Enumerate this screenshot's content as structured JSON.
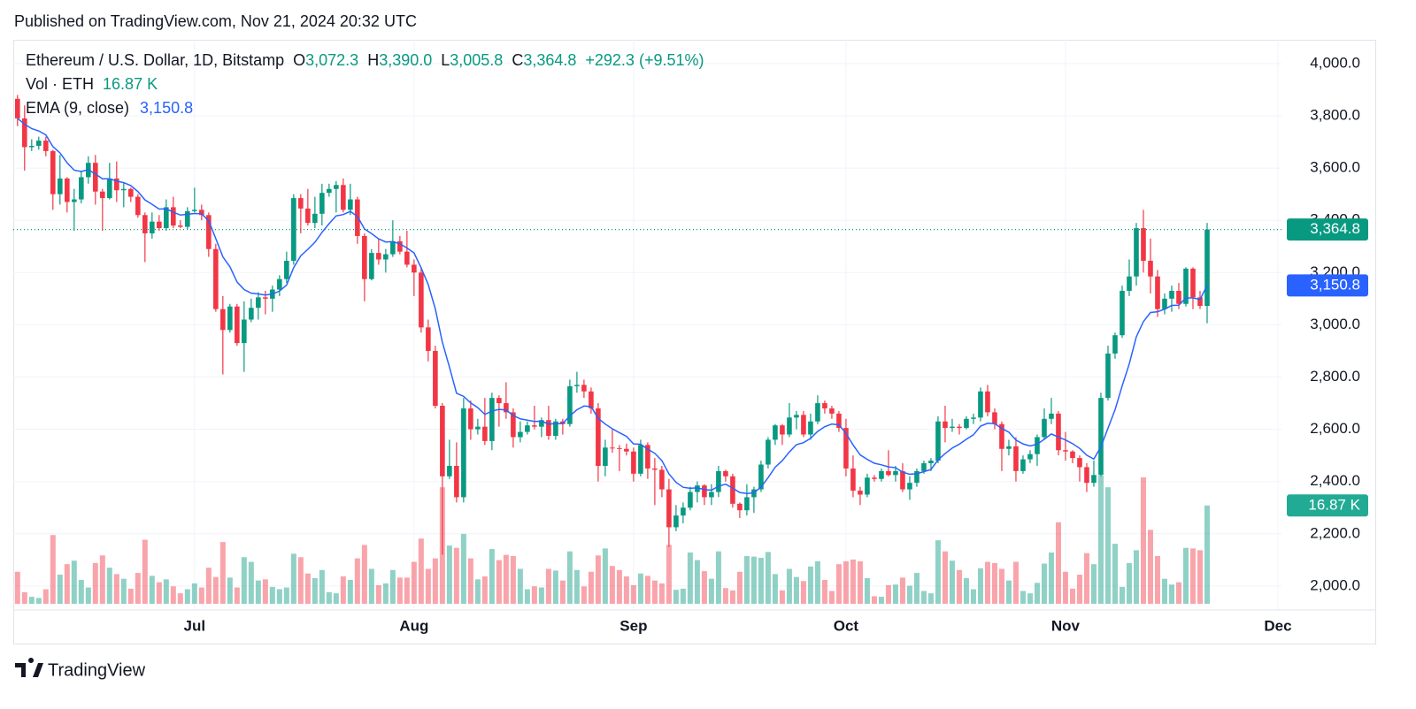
{
  "header": {
    "published": "Published on TradingView.com, Nov 21, 2024 20:32 UTC",
    "logo_text": "TradingView"
  },
  "chart_data": {
    "type": "candlestick",
    "title": "Ethereum / U.S. Dollar, 1D, Bitstamp",
    "ohlc_values": [
      {
        "key": "O",
        "text": "3,072.3"
      },
      {
        "key": "H",
        "text": "3,390.0"
      },
      {
        "key": "L",
        "text": "3,005.8"
      },
      {
        "key": "C",
        "text": "3,364.8"
      }
    ],
    "change": "+292.3 (+9.51%)",
    "volume_label": "Vol · ETH",
    "volume_value": "16.87 K",
    "ema_label": "EMA (9, close)",
    "ema_value": "3,150.8",
    "up_color": "#089981",
    "down_color": "#f23645",
    "ema_color": "#2962ff",
    "grid": true,
    "ylim": [
      1932,
      4091
    ],
    "yticks": [
      {
        "value": 2000,
        "label": "2,000.0"
      },
      {
        "value": 2200,
        "label": "2,200.0"
      },
      {
        "value": 2400,
        "label": "2,400.0"
      },
      {
        "value": 2600,
        "label": "2,600.0"
      },
      {
        "value": 2800,
        "label": "2,800.0"
      },
      {
        "value": 3000,
        "label": "3,000.0"
      },
      {
        "value": 3200,
        "label": "3,200.0"
      },
      {
        "value": 3400,
        "label": "3,400.0"
      },
      {
        "value": 3600,
        "label": "3,600.0"
      },
      {
        "value": 3800,
        "label": "3,800.0"
      },
      {
        "value": 4000,
        "label": "4,000.0"
      }
    ],
    "xlim": [
      -0.6,
      178.5
    ],
    "xticks": [
      {
        "value": 25,
        "label": "Jul"
      },
      {
        "value": 56,
        "label": "Aug"
      },
      {
        "value": 87,
        "label": "Sep"
      },
      {
        "value": 117,
        "label": "Oct"
      },
      {
        "value": 148,
        "label": "Nov"
      },
      {
        "value": 178,
        "label": "Dec"
      }
    ],
    "last_price": {
      "value": 3364.8,
      "label": "3,364.8"
    },
    "ohlc": [
      [
        3865,
        3880,
        3760,
        3790
      ],
      [
        3790,
        3840,
        3590,
        3680
      ],
      [
        3680,
        3710,
        3665,
        3685
      ],
      [
        3685,
        3720,
        3670,
        3705
      ],
      [
        3705,
        3720,
        3645,
        3665
      ],
      [
        3665,
        3670,
        3440,
        3500
      ],
      [
        3500,
        3650,
        3460,
        3560
      ],
      [
        3560,
        3565,
        3430,
        3470
      ],
      [
        3470,
        3520,
        3360,
        3480
      ],
      [
        3480,
        3590,
        3465,
        3565
      ],
      [
        3565,
        3645,
        3540,
        3620
      ],
      [
        3620,
        3650,
        3460,
        3510
      ],
      [
        3510,
        3520,
        3360,
        3485
      ],
      [
        3485,
        3620,
        3480,
        3560
      ],
      [
        3560,
        3625,
        3470,
        3515
      ],
      [
        3515,
        3545,
        3450,
        3520
      ],
      [
        3520,
        3525,
        3470,
        3490
      ],
      [
        3490,
        3500,
        3410,
        3420
      ],
      [
        3420,
        3430,
        3240,
        3350
      ],
      [
        3350,
        3430,
        3330,
        3395
      ],
      [
        3395,
        3420,
        3360,
        3370
      ],
      [
        3370,
        3480,
        3360,
        3450
      ],
      [
        3450,
        3490,
        3370,
        3380
      ],
      [
        3380,
        3400,
        3370,
        3375
      ],
      [
        3375,
        3450,
        3365,
        3435
      ],
      [
        3435,
        3525,
        3430,
        3440
      ],
      [
        3440,
        3460,
        3400,
        3420
      ],
      [
        3420,
        3430,
        3260,
        3290
      ],
      [
        3290,
        3310,
        3050,
        3060
      ],
      [
        3060,
        3110,
        2810,
        2980
      ],
      [
        2980,
        3080,
        2970,
        3070
      ],
      [
        3070,
        3080,
        2920,
        2930
      ],
      [
        2930,
        3090,
        2820,
        3020
      ],
      [
        3020,
        3100,
        3010,
        3065
      ],
      [
        3065,
        3125,
        3020,
        3105
      ],
      [
        3105,
        3130,
        3040,
        3100
      ],
      [
        3100,
        3150,
        3050,
        3135
      ],
      [
        3135,
        3190,
        3110,
        3175
      ],
      [
        3175,
        3280,
        3160,
        3245
      ],
      [
        3245,
        3500,
        3230,
        3485
      ],
      [
        3485,
        3500,
        3350,
        3445
      ],
      [
        3445,
        3520,
        3380,
        3390
      ],
      [
        3390,
        3490,
        3370,
        3425
      ],
      [
        3425,
        3540,
        3380,
        3505
      ],
      [
        3505,
        3540,
        3490,
        3520
      ],
      [
        3520,
        3550,
        3430,
        3535
      ],
      [
        3535,
        3560,
        3430,
        3440
      ],
      [
        3440,
        3540,
        3420,
        3480
      ],
      [
        3480,
        3490,
        3310,
        3340
      ],
      [
        3340,
        3350,
        3090,
        3175
      ],
      [
        3175,
        3290,
        3170,
        3275
      ],
      [
        3275,
        3330,
        3230,
        3250
      ],
      [
        3250,
        3290,
        3200,
        3270
      ],
      [
        3270,
        3400,
        3260,
        3320
      ],
      [
        3320,
        3340,
        3270,
        3280
      ],
      [
        3280,
        3360,
        3220,
        3230
      ],
      [
        3230,
        3250,
        3110,
        3200
      ],
      [
        3200,
        3220,
        2970,
        2990
      ],
      [
        2990,
        3020,
        2860,
        2900
      ],
      [
        2900,
        2920,
        2680,
        2690
      ],
      [
        2690,
        2700,
        2120,
        2420
      ],
      [
        2420,
        2560,
        2410,
        2460
      ],
      [
        2460,
        2550,
        2320,
        2340
      ],
      [
        2340,
        2720,
        2320,
        2680
      ],
      [
        2680,
        2710,
        2560,
        2600
      ],
      [
        2600,
        2640,
        2580,
        2610
      ],
      [
        2610,
        2720,
        2540,
        2555
      ],
      [
        2555,
        2740,
        2520,
        2720
      ],
      [
        2720,
        2730,
        2610,
        2700
      ],
      [
        2700,
        2780,
        2640,
        2665
      ],
      [
        2665,
        2680,
        2530,
        2570
      ],
      [
        2570,
        2630,
        2550,
        2590
      ],
      [
        2590,
        2630,
        2580,
        2615
      ],
      [
        2615,
        2690,
        2600,
        2610
      ],
      [
        2610,
        2645,
        2570,
        2635
      ],
      [
        2635,
        2690,
        2560,
        2575
      ],
      [
        2575,
        2640,
        2560,
        2630
      ],
      [
        2630,
        2640,
        2580,
        2620
      ],
      [
        2620,
        2790,
        2610,
        2765
      ],
      [
        2765,
        2820,
        2740,
        2770
      ],
      [
        2770,
        2790,
        2720,
        2745
      ],
      [
        2745,
        2760,
        2660,
        2680
      ],
      [
        2680,
        2700,
        2400,
        2460
      ],
      [
        2460,
        2560,
        2420,
        2530
      ],
      [
        2530,
        2600,
        2510,
        2528
      ],
      [
        2528,
        2540,
        2440,
        2525
      ],
      [
        2525,
        2545,
        2500,
        2515
      ],
      [
        2515,
        2530,
        2400,
        2430
      ],
      [
        2430,
        2560,
        2420,
        2540
      ],
      [
        2540,
        2550,
        2410,
        2450
      ],
      [
        2450,
        2490,
        2310,
        2445
      ],
      [
        2445,
        2460,
        2340,
        2370
      ],
      [
        2370,
        2410,
        2150,
        2225
      ],
      [
        2225,
        2310,
        2210,
        2270
      ],
      [
        2270,
        2320,
        2240,
        2300
      ],
      [
        2300,
        2380,
        2290,
        2360
      ],
      [
        2360,
        2400,
        2320,
        2385
      ],
      [
        2385,
        2390,
        2310,
        2340
      ],
      [
        2340,
        2390,
        2310,
        2360
      ],
      [
        2360,
        2460,
        2340,
        2440
      ],
      [
        2440,
        2445,
        2400,
        2420
      ],
      [
        2420,
        2430,
        2300,
        2315
      ],
      [
        2315,
        2320,
        2260,
        2290
      ],
      [
        2290,
        2390,
        2270,
        2340
      ],
      [
        2340,
        2380,
        2280,
        2370
      ],
      [
        2370,
        2480,
        2360,
        2465
      ],
      [
        2465,
        2570,
        2450,
        2560
      ],
      [
        2560,
        2620,
        2540,
        2615
      ],
      [
        2615,
        2620,
        2540,
        2580
      ],
      [
        2580,
        2700,
        2570,
        2645
      ],
      [
        2645,
        2670,
        2600,
        2655
      ],
      [
        2655,
        2670,
        2570,
        2580
      ],
      [
        2580,
        2660,
        2560,
        2630
      ],
      [
        2630,
        2730,
        2620,
        2700
      ],
      [
        2700,
        2710,
        2660,
        2680
      ],
      [
        2680,
        2690,
        2640,
        2660
      ],
      [
        2660,
        2670,
        2590,
        2605
      ],
      [
        2605,
        2640,
        2420,
        2450
      ],
      [
        2450,
        2500,
        2340,
        2365
      ],
      [
        2365,
        2380,
        2310,
        2350
      ],
      [
        2350,
        2430,
        2340,
        2415
      ],
      [
        2415,
        2425,
        2400,
        2410
      ],
      [
        2410,
        2450,
        2400,
        2440
      ],
      [
        2440,
        2520,
        2420,
        2425
      ],
      [
        2425,
        2460,
        2400,
        2440
      ],
      [
        2440,
        2470,
        2360,
        2370
      ],
      [
        2370,
        2420,
        2330,
        2395
      ],
      [
        2395,
        2450,
        2380,
        2440
      ],
      [
        2440,
        2480,
        2430,
        2470
      ],
      [
        2470,
        2490,
        2440,
        2480
      ],
      [
        2480,
        2650,
        2470,
        2630
      ],
      [
        2630,
        2690,
        2550,
        2605
      ],
      [
        2605,
        2640,
        2590,
        2610
      ],
      [
        2610,
        2620,
        2580,
        2605
      ],
      [
        2605,
        2650,
        2600,
        2640
      ],
      [
        2640,
        2660,
        2620,
        2645
      ],
      [
        2645,
        2760,
        2630,
        2745
      ],
      [
        2745,
        2770,
        2650,
        2665
      ],
      [
        2665,
        2680,
        2600,
        2620
      ],
      [
        2620,
        2630,
        2440,
        2525
      ],
      [
        2525,
        2560,
        2500,
        2535
      ],
      [
        2535,
        2570,
        2400,
        2440
      ],
      [
        2440,
        2500,
        2430,
        2485
      ],
      [
        2485,
        2520,
        2470,
        2505
      ],
      [
        2505,
        2580,
        2460,
        2570
      ],
      [
        2570,
        2680,
        2560,
        2640
      ],
      [
        2640,
        2720,
        2620,
        2660
      ],
      [
        2660,
        2670,
        2500,
        2520
      ],
      [
        2520,
        2590,
        2480,
        2515
      ],
      [
        2515,
        2520,
        2470,
        2490
      ],
      [
        2490,
        2500,
        2400,
        2455
      ],
      [
        2455,
        2470,
        2360,
        2395
      ],
      [
        2395,
        2480,
        2380,
        2425
      ],
      [
        2425,
        2740,
        2420,
        2720
      ],
      [
        2720,
        2920,
        2710,
        2890
      ],
      [
        2890,
        2970,
        2870,
        2960
      ],
      [
        2960,
        3150,
        2950,
        3130
      ],
      [
        3130,
        3250,
        3110,
        3185
      ],
      [
        3185,
        3390,
        3150,
        3370
      ],
      [
        3370,
        3440,
        3200,
        3245
      ],
      [
        3245,
        3330,
        3120,
        3185
      ],
      [
        3185,
        3210,
        3030,
        3060
      ],
      [
        3060,
        3120,
        3040,
        3100
      ],
      [
        3100,
        3150,
        3050,
        3130
      ],
      [
        3130,
        3160,
        3060,
        3080
      ],
      [
        3080,
        3220,
        3070,
        3215
      ],
      [
        3215,
        3220,
        3060,
        3105
      ],
      [
        3105,
        3130,
        3060,
        3072.3
      ],
      [
        3072.3,
        3390,
        3005.8,
        3364.8
      ]
    ],
    "volume": [
      5.5,
      2.0,
      1.2,
      1.0,
      2.5,
      11.8,
      5.0,
      6.8,
      7.4,
      4.1,
      2.8,
      7.0,
      8.3,
      6.2,
      5.1,
      4.3,
      2.6,
      5.3,
      11.0,
      4.8,
      3.7,
      4.2,
      3.0,
      1.8,
      2.5,
      3.5,
      2.8,
      6.2,
      4.6,
      10.6,
      4.5,
      2.8,
      8.0,
      7.2,
      4.0,
      4.2,
      2.9,
      2.5,
      2.8,
      8.6,
      8.0,
      5.2,
      4.4,
      5.8,
      2.0,
      1.8,
      4.7,
      4.1,
      7.8,
      10.1,
      6.0,
      3.2,
      3.5,
      5.8,
      4.5,
      4.5,
      7.2,
      11.2,
      6.0,
      7.8,
      20.0,
      10.0,
      9.6,
      12.0,
      7.8,
      4.2,
      4.7,
      9.4,
      7.5,
      8.4,
      8.2,
      6.0,
      2.5,
      3.0,
      2.8,
      6.0,
      5.7,
      4.0,
      9.0,
      5.8,
      3.0,
      5.5,
      8.3,
      9.5,
      6.5,
      5.8,
      4.7,
      3.2,
      5.2,
      4.8,
      4.0,
      3.5,
      10.1,
      2.4,
      2.6,
      8.8,
      7.5,
      5.6,
      4.3,
      9.0,
      2.7,
      2.3,
      5.5,
      8.2,
      8.1,
      7.9,
      8.9,
      5.1,
      2.3,
      6.0,
      4.6,
      3.9,
      6.4,
      7.3,
      4.1,
      2.2,
      6.8,
      7.3,
      7.6,
      7.3,
      4.4,
      1.3,
      1.2,
      3.2,
      3.3,
      4.5,
      3.1,
      5.3,
      2.2,
      1.8,
      10.9,
      9.0,
      7.4,
      5.8,
      4.4,
      2.5,
      6.1,
      7.2,
      7.0,
      6.0,
      4.0,
      7.2,
      2.2,
      1.8,
      3.6,
      6.9,
      8.8,
      14.0,
      5.5,
      2.6,
      5.0,
      8.7,
      6.8,
      22.0,
      20.0,
      10.3,
      2.9,
      7.0,
      9.2,
      21.7,
      12.7,
      8.2,
      4.3,
      3.3,
      3.7,
      9.6,
      9.5,
      9.2,
      16.87
    ],
    "ema": [
      3790,
      3768,
      3751,
      3742,
      3727,
      3682,
      3658,
      3620,
      3592,
      3587,
      3594,
      3577,
      3559,
      3559,
      3550,
      3544,
      3533,
      3510,
      3478,
      3461,
      3443,
      3444,
      3431,
      3420,
      3423,
      3426,
      3425,
      3398,
      3330,
      3260,
      3222,
      3164,
      3135,
      3121,
      3118,
      3114,
      3118,
      3129,
      3152,
      3219,
      3264,
      3289,
      3316,
      3354,
      3387,
      3417,
      3422,
      3434,
      3415,
      3367,
      3349,
      3329,
      3317,
      3318,
      3310,
      3294,
      3275,
      3218,
      3154,
      3061,
      2933,
      2838,
      2738,
      2726,
      2701,
      2683,
      2657,
      2670,
      2676,
      2674,
      2653,
      2640,
      2635,
      2630,
      2631,
      2620,
      2622,
      2622,
      2651,
      2675,
      2689,
      2687,
      2642,
      2620,
      2602,
      2587,
      2573,
      2544,
      2543,
      2524,
      2508,
      2480,
      2429,
      2397,
      2378,
      2374,
      2376,
      2369,
      2367,
      2382,
      2390,
      2375,
      2358,
      2354,
      2357,
      2379,
      2415,
      2455,
      2480,
      2513,
      2541,
      2549,
      2565,
      2592,
      2610,
      2620,
      2617,
      2584,
      2540,
      2502,
      2485,
      2470,
      2464,
      2456,
      2453,
      2436,
      2428,
      2430,
      2438,
      2446,
      2483,
      2507,
      2528,
      2543,
      2562,
      2579,
      2612,
      2623,
      2622,
      2603,
      2589,
      2559,
      2544,
      2536,
      2543,
      2562,
      2582,
      2570,
      2559,
      2545,
      2527,
      2501,
      2486,
      2533,
      2604,
      2675,
      2766,
      2850,
      2954,
      3012,
      3047,
      3050,
      3060,
      3074,
      3075,
      3103,
      3103,
      3097,
      3150.8
    ]
  }
}
